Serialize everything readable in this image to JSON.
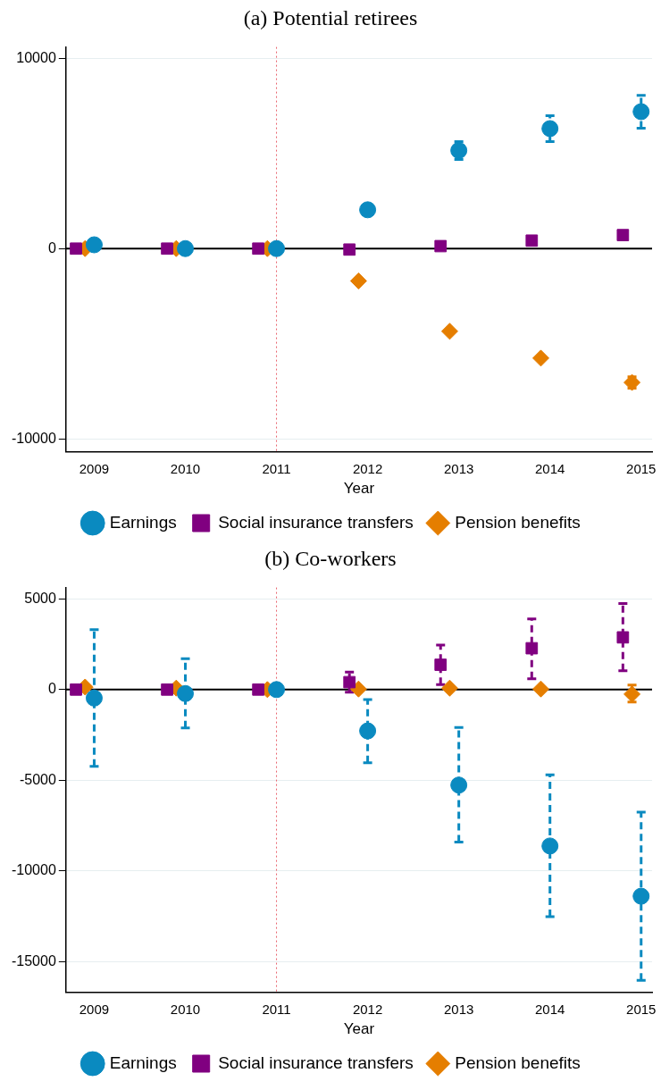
{
  "chart_data": [
    {
      "type": "scatter",
      "title": "(a) Potential retirees",
      "xlabel": "Year",
      "xlim": [
        2008.69,
        2015.12
      ],
      "xticks": [
        2009,
        2010,
        2011,
        2012,
        2013,
        2014,
        2015
      ],
      "ylim": [
        -10680,
        10600
      ],
      "yticks": [
        -10000,
        0,
        10000
      ],
      "grid": "y",
      "legend": "bottom",
      "ref_lines": [
        {
          "axis": "x",
          "value": 2011,
          "color": "#e8606a",
          "line_style": "dotted"
        },
        {
          "axis": "y",
          "value": 0,
          "color": "#000000",
          "line_style": "solid"
        }
      ],
      "series": [
        {
          "name": "Earnings",
          "color": "#0a8ac0",
          "marker": "circle",
          "x": [
            2009,
            2010,
            2011,
            2012,
            2013,
            2014,
            2015
          ],
          "values": [
            200,
            0,
            0,
            2040,
            5160,
            6310,
            7200
          ],
          "errors": [
            null,
            null,
            null,
            null,
            [
              4690,
              5630
            ],
            [
              5630,
              6990
            ],
            [
              6330,
              8060
            ]
          ]
        },
        {
          "name": "Social insurance transfers",
          "color": "#800080",
          "marker": "square",
          "x": [
            2008.8,
            2009.8,
            2010.8,
            2011.8,
            2012.8,
            2013.8,
            2014.8
          ],
          "values": [
            0,
            0,
            0,
            -50,
            130,
            420,
            710
          ]
        },
        {
          "name": "Pension benefits",
          "color": "#e57e00",
          "marker": "diamond",
          "x": [
            2008.9,
            2009.9,
            2010.9,
            2011.9,
            2012.9,
            2013.9,
            2014.9
          ],
          "values": [
            0,
            0,
            0,
            -1700,
            -4350,
            -5760,
            -7040
          ],
          "errors": [
            null,
            null,
            null,
            null,
            null,
            null,
            [
              -7340,
              -6740
            ]
          ]
        }
      ]
    },
    {
      "type": "scatter",
      "title": "(b) Co-workers",
      "xlabel": "Year",
      "xlim": [
        2008.69,
        2015.12
      ],
      "xticks": [
        2009,
        2010,
        2011,
        2012,
        2013,
        2014,
        2015
      ],
      "ylim": [
        -16700,
        5630
      ],
      "yticks": [
        -15000,
        -10000,
        -5000,
        0,
        5000
      ],
      "grid": "y",
      "legend": "bottom",
      "ref_lines": [
        {
          "axis": "x",
          "value": 2011,
          "color": "#e8606a",
          "line_style": "dotted"
        },
        {
          "axis": "y",
          "value": 0,
          "color": "#000000",
          "line_style": "solid"
        }
      ],
      "series": [
        {
          "name": "Earnings",
          "color": "#0a8ac0",
          "marker": "circle",
          "x": [
            2009,
            2010,
            2011,
            2012,
            2013,
            2014,
            2015
          ],
          "values": [
            -470,
            -220,
            0,
            -2280,
            -5270,
            -8630,
            -11400
          ],
          "errors": [
            [
              -4230,
              3300
            ],
            [
              -2120,
              1700
            ],
            null,
            [
              -4040,
              -550
            ],
            [
              -8410,
              -2090
            ],
            [
              -12530,
              -4700
            ],
            [
              -16040,
              -6760
            ]
          ]
        },
        {
          "name": "Social insurance transfers",
          "color": "#800080",
          "marker": "square",
          "x": [
            2008.8,
            2009.8,
            2010.8,
            2011.8,
            2012.8,
            2013.8,
            2014.8
          ],
          "values": [
            0,
            0,
            0,
            410,
            1370,
            2280,
            2880
          ],
          "errors": [
            null,
            null,
            null,
            [
              -140,
              960
            ],
            [
              270,
              2450
            ],
            [
              600,
              3900
            ],
            [
              1040,
              4750
            ]
          ]
        },
        {
          "name": "Pension benefits",
          "color": "#e57e00",
          "marker": "diamond",
          "x": [
            2008.9,
            2009.9,
            2010.9,
            2011.9,
            2012.9,
            2013.9,
            2014.9
          ],
          "values": [
            140,
            80,
            0,
            30,
            80,
            30,
            -250
          ],
          "errors": [
            null,
            null,
            null,
            null,
            null,
            null,
            [
              -690,
              250
            ]
          ]
        }
      ]
    }
  ]
}
